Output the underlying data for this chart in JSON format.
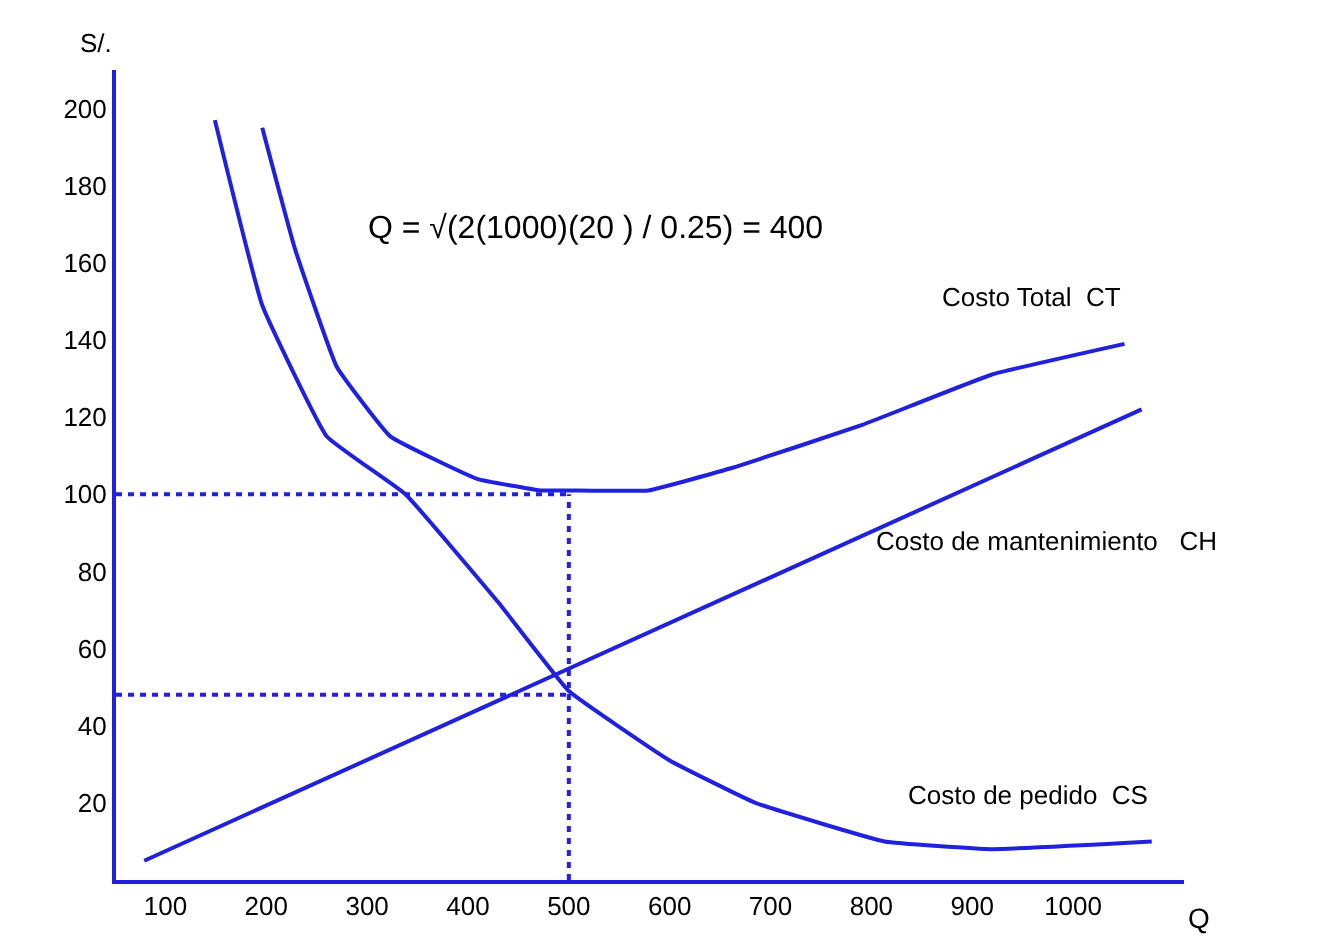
{
  "chart_data": {
    "type": "line",
    "xlabel": "Q",
    "ylabel": "S/.",
    "xlim": [
      51,
      1110
    ],
    "ylim": [
      0,
      210
    ],
    "xticks": [
      100,
      200,
      300,
      400,
      500,
      600,
      700,
      800,
      900,
      1000
    ],
    "yticks": [
      20,
      40,
      60,
      80,
      100,
      120,
      140,
      160,
      180,
      200
    ],
    "legend": false,
    "marker": "none",
    "line_style": "solid",
    "annotations": [
      "Q = √(2(1000)(20 ) / 0.25) = 400"
    ],
    "series": [
      {
        "name": "Costo Total  CT",
        "color": "#2020e0",
        "x": [
          196,
          228,
          270,
          323,
          409,
          472,
          500,
          579,
          664,
          791,
          919,
          1051
        ],
        "values": [
          195,
          164,
          133,
          115,
          104,
          101,
          101,
          101,
          107,
          118,
          131,
          139
        ]
      },
      {
        "name": "Costo de mantenimiento   CH",
        "color": "#2020e0",
        "x": [
          79,
          1068
        ],
        "values": [
          5,
          122
        ]
      },
      {
        "name": "Costo de pedido  CS",
        "color": "#2020e0",
        "x": [
          149,
          196,
          260,
          338,
          430,
          500,
          600,
          685,
          813,
          919,
          1078
        ],
        "values": [
          197,
          149,
          115,
          100,
          72,
          49,
          31,
          20,
          10,
          8,
          10
        ]
      },
      {
        "color": "#2020e0",
        "line_style": "dotted",
        "x": [
          51,
          500
        ],
        "values": [
          100,
          100
        ]
      },
      {
        "color": "#2020e0",
        "line_style": "dotted",
        "x": [
          51,
          500
        ],
        "values": [
          48,
          48
        ]
      },
      {
        "color": "#2020e0",
        "line_style": "dotted",
        "x": [
          500,
          500
        ],
        "values": [
          0,
          100
        ]
      }
    ]
  }
}
